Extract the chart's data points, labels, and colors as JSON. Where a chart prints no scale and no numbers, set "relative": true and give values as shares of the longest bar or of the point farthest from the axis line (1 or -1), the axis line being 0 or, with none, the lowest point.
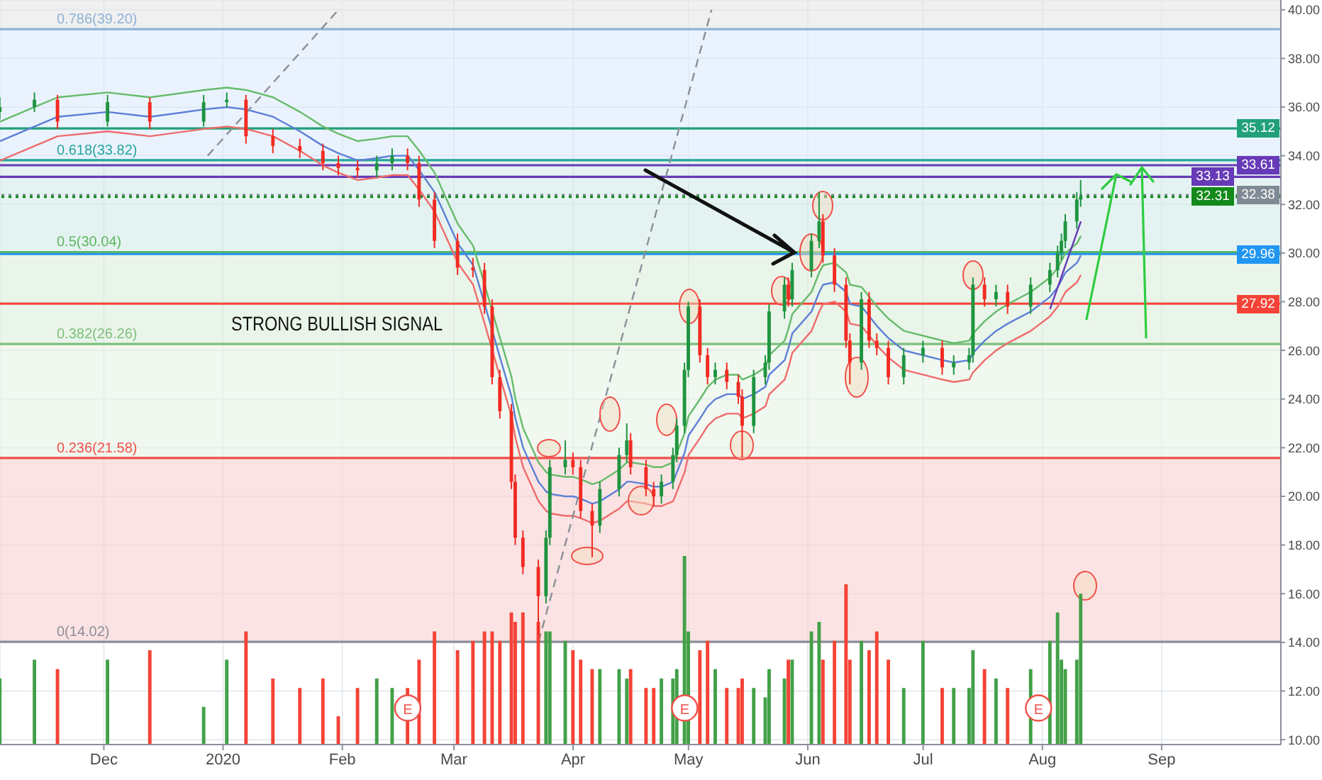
{
  "chart_data": [
    {
      "type": "candlestick",
      "x": [
        "2019-11-04",
        "2019-11-13",
        "2019-11-19",
        "2019-12-02",
        "2019-12-13",
        "2019-12-27",
        "2020-01-02",
        "2020-01-07",
        "2020-01-14",
        "2020-01-21",
        "2020-01-27",
        "2020-01-31",
        "2020-02-05",
        "2020-02-10",
        "2020-02-14",
        "2020-02-18",
        "2020-02-21",
        "2020-02-25",
        "2020-03-02",
        "2020-03-06",
        "2020-03-09",
        "2020-03-11",
        "2020-03-13",
        "2020-03-16",
        "2020-03-17",
        "2020-03-19",
        "2020-03-23",
        "2020-03-25",
        "2020-03-26",
        "2020-03-30",
        "2020-04-01",
        "2020-04-03",
        "2020-04-06",
        "2020-04-08",
        "2020-04-13",
        "2020-04-15",
        "2020-04-16",
        "2020-04-20",
        "2020-04-22",
        "2020-04-24",
        "2020-04-27",
        "2020-04-28",
        "2020-04-30",
        "2020-05-01",
        "2020-05-04",
        "2020-05-06",
        "2020-05-08",
        "2020-05-11",
        "2020-05-14",
        "2020-05-15",
        "2020-05-18",
        "2020-05-21",
        "2020-05-22",
        "2020-05-26",
        "2020-05-27",
        "2020-05-28",
        "2020-06-02",
        "2020-06-04",
        "2020-06-05",
        "2020-06-08",
        "2020-06-11",
        "2020-06-12",
        "2020-06-15",
        "2020-06-17",
        "2020-06-19",
        "2020-06-22",
        "2020-06-26",
        "2020-07-01",
        "2020-07-06",
        "2020-07-09",
        "2020-07-13",
        "2020-07-14",
        "2020-07-17",
        "2020-07-20",
        "2020-07-23",
        "2020-07-29",
        "2020-08-03",
        "2020-08-05",
        "2020-08-06",
        "2020-08-07",
        "2020-08-10",
        "2020-08-11"
      ],
      "series": [
        {
          "type": "line",
          "color": "#66bb6a",
          "values": [
            35.4,
            36.0,
            36.4,
            36.6,
            36.4,
            36.7,
            36.8,
            36.7,
            36.4,
            35.8,
            35.2,
            34.9,
            34.6,
            34.7,
            34.8,
            34.8,
            34.2,
            33.3,
            31.2,
            30.3,
            28.7,
            27.6,
            26.5,
            24.9,
            24.0,
            22.8,
            21.4,
            21.0,
            20.9,
            20.8,
            20.8,
            20.7,
            20.5,
            20.6,
            21.1,
            21.4,
            21.4,
            21.3,
            21.2,
            21.2,
            21.4,
            21.8,
            22.6,
            23.3,
            24.0,
            24.5,
            24.8,
            25.0,
            25.0,
            24.8,
            25.0,
            25.3,
            25.8,
            26.4,
            26.9,
            27.5,
            28.4,
            29.2,
            29.5,
            29.6,
            29.2,
            28.7,
            28.6,
            28.2,
            27.8,
            27.3,
            26.8,
            26.6,
            26.4,
            26.3,
            26.4,
            26.7,
            27.2,
            27.6,
            27.9,
            28.4,
            29.0,
            29.4,
            29.7,
            30.0,
            30.4,
            30.7
          ]
        },
        {
          "type": "line",
          "color": "#5c7fd6",
          "values": [
            34.6,
            35.2,
            35.6,
            35.8,
            35.6,
            35.9,
            36.0,
            35.9,
            35.6,
            35.0,
            34.4,
            34.1,
            33.8,
            33.9,
            34.0,
            34.0,
            33.4,
            32.5,
            30.4,
            29.5,
            27.9,
            26.8,
            25.7,
            24.1,
            23.2,
            22.0,
            20.6,
            20.2,
            20.1,
            20.0,
            20.0,
            19.9,
            19.7,
            19.8,
            20.3,
            20.6,
            20.6,
            20.5,
            20.4,
            20.4,
            20.6,
            21.0,
            21.8,
            22.5,
            23.2,
            23.7,
            24.0,
            24.2,
            24.2,
            24.0,
            24.2,
            24.5,
            25.0,
            25.6,
            26.1,
            26.7,
            27.6,
            28.4,
            28.7,
            28.8,
            28.4,
            27.9,
            27.8,
            27.4,
            27.0,
            26.5,
            26.0,
            25.8,
            25.6,
            25.5,
            25.6,
            25.9,
            26.4,
            26.8,
            27.1,
            27.6,
            28.2,
            28.6,
            28.9,
            29.2,
            29.6,
            29.9
          ]
        },
        {
          "type": "line",
          "color": "#ef6b6b",
          "values": [
            33.8,
            34.4,
            34.8,
            35.0,
            34.8,
            35.1,
            35.2,
            35.1,
            34.8,
            34.2,
            33.6,
            33.3,
            33.0,
            33.1,
            33.2,
            33.2,
            32.6,
            31.7,
            29.6,
            28.7,
            27.1,
            26.0,
            24.9,
            23.3,
            22.4,
            21.2,
            19.8,
            19.4,
            19.3,
            19.2,
            19.2,
            19.1,
            18.9,
            19.0,
            19.5,
            19.8,
            19.8,
            19.7,
            19.6,
            19.6,
            19.8,
            20.2,
            21.0,
            21.7,
            22.4,
            22.9,
            23.2,
            23.4,
            23.4,
            23.2,
            23.4,
            23.7,
            24.2,
            24.8,
            25.3,
            25.9,
            26.8,
            27.6,
            27.9,
            28.0,
            27.6,
            27.1,
            27.0,
            26.6,
            26.2,
            25.7,
            25.2,
            25.0,
            24.8,
            24.7,
            24.8,
            25.1,
            25.6,
            26.0,
            26.3,
            26.8,
            27.4,
            27.8,
            28.1,
            28.4,
            28.8,
            29.1
          ]
        },
        {
          "type": "line",
          "color": "#8a8f99",
          "line_style": "dashed",
          "x": [
            "2020-03-23",
            "2020-05-07"
          ],
          "values": [
            14.02,
            40
          ]
        },
        {
          "type": "line",
          "color": "#8a8f99",
          "line_style": "dashed",
          "x": [
            "2019-12-28",
            "2020-01-31"
          ],
          "values": [
            34.0,
            40
          ]
        },
        {
          "type": "line",
          "color": "#673ab7",
          "x": [
            "2020-08-03",
            "2020-08-11"
          ],
          "values": [
            27.7,
            31.3
          ]
        },
        {
          "type": "candlestick",
          "ohlc": [
            [
              35.8,
              36.4,
              35.5,
              36.0
            ],
            [
              36.0,
              36.6,
              35.8,
              36.3
            ],
            [
              36.3,
              36.5,
              35.1,
              35.4
            ],
            [
              35.4,
              36.5,
              35.2,
              36.2
            ],
            [
              36.2,
              36.4,
              35.1,
              35.4
            ],
            [
              35.4,
              36.5,
              35.2,
              36.2
            ],
            [
              36.2,
              36.6,
              36.0,
              36.3
            ],
            [
              36.3,
              36.5,
              34.5,
              34.8
            ],
            [
              34.8,
              35.1,
              34.1,
              34.4
            ],
            [
              34.4,
              34.7,
              33.9,
              34.2
            ],
            [
              34.2,
              34.5,
              33.4,
              33.7
            ],
            [
              33.7,
              34.0,
              33.2,
              33.5
            ],
            [
              33.5,
              33.8,
              33.1,
              33.4
            ],
            [
              33.4,
              34.0,
              33.1,
              33.7
            ],
            [
              33.7,
              34.3,
              33.4,
              34.0
            ],
            [
              34.0,
              34.3,
              33.4,
              33.7
            ],
            [
              33.7,
              34.0,
              31.9,
              32.2
            ],
            [
              32.2,
              32.5,
              30.2,
              30.5
            ],
            [
              30.5,
              30.8,
              29.1,
              29.4
            ],
            [
              29.4,
              29.8,
              29.0,
              29.3
            ],
            [
              29.3,
              29.6,
              27.5,
              27.8
            ],
            [
              27.8,
              28.1,
              24.6,
              24.9
            ],
            [
              24.9,
              25.2,
              23.2,
              23.5
            ],
            [
              23.5,
              23.8,
              20.3,
              20.6
            ],
            [
              20.6,
              20.9,
              18.0,
              18.3
            ],
            [
              18.3,
              18.6,
              16.8,
              17.1
            ],
            [
              17.1,
              17.4,
              14.3,
              15.9
            ],
            [
              15.9,
              18.6,
              15.6,
              18.3
            ],
            [
              18.3,
              21.5,
              18.0,
              21.2
            ],
            [
              21.2,
              22.3,
              20.9,
              21.5
            ],
            [
              21.5,
              21.8,
              20.9,
              21.2
            ],
            [
              21.2,
              21.5,
              19.1,
              19.4
            ],
            [
              19.4,
              19.7,
              17.5,
              18.8
            ],
            [
              18.8,
              20.6,
              18.5,
              20.3
            ],
            [
              20.3,
              22.0,
              20.0,
              21.7
            ],
            [
              21.7,
              23.0,
              21.4,
              22.3
            ],
            [
              22.3,
              22.6,
              20.9,
              21.2
            ],
            [
              21.2,
              21.5,
              20.0,
              20.3
            ],
            [
              20.3,
              20.6,
              19.6,
              20.0
            ],
            [
              20.0,
              20.9,
              19.7,
              20.6
            ],
            [
              20.6,
              22.0,
              20.3,
              21.7
            ],
            [
              21.7,
              23.2,
              21.4,
              22.9
            ],
            [
              22.9,
              25.5,
              22.6,
              25.2
            ],
            [
              25.2,
              28.0,
              24.9,
              27.8
            ],
            [
              27.8,
              28.1,
              25.5,
              25.8
            ],
            [
              25.8,
              26.1,
              24.6,
              24.9
            ],
            [
              24.9,
              25.5,
              24.6,
              25.2
            ],
            [
              25.2,
              25.5,
              24.4,
              24.7
            ],
            [
              24.7,
              25.0,
              23.8,
              24.1
            ],
            [
              24.1,
              24.4,
              21.6,
              22.9
            ],
            [
              22.9,
              25.2,
              22.6,
              24.9
            ],
            [
              24.9,
              25.8,
              24.6,
              25.5
            ],
            [
              25.5,
              27.9,
              25.2,
              27.6
            ],
            [
              27.6,
              29.0,
              27.3,
              28.7
            ],
            [
              28.7,
              29.0,
              27.8,
              28.1
            ],
            [
              28.1,
              29.6,
              27.8,
              29.3
            ],
            [
              29.3,
              30.8,
              29.0,
              30.5
            ],
            [
              30.5,
              32.5,
              30.2,
              31.3
            ],
            [
              31.3,
              31.6,
              29.6,
              29.9
            ],
            [
              29.9,
              30.2,
              28.4,
              28.7
            ],
            [
              28.7,
              29.0,
              26.1,
              26.4
            ],
            [
              26.4,
              26.7,
              24.6,
              25.5
            ],
            [
              25.5,
              28.4,
              25.2,
              28.1
            ],
            [
              28.1,
              28.4,
              26.1,
              26.4
            ],
            [
              26.4,
              26.7,
              25.8,
              26.1
            ],
            [
              26.1,
              26.4,
              24.6,
              24.9
            ],
            [
              24.9,
              26.1,
              24.6,
              25.8
            ],
            [
              25.8,
              26.4,
              25.5,
              26.1
            ],
            [
              26.1,
              26.4,
              25.0,
              25.3
            ],
            [
              25.3,
              25.8,
              25.0,
              25.5
            ],
            [
              25.5,
              26.1,
              25.2,
              25.8
            ],
            [
              25.8,
              29.0,
              25.5,
              28.7
            ],
            [
              28.7,
              29.0,
              27.8,
              28.1
            ],
            [
              28.1,
              28.7,
              27.8,
              28.4
            ],
            [
              28.4,
              28.7,
              27.5,
              27.8
            ],
            [
              27.8,
              29.0,
              27.5,
              28.7
            ],
            [
              28.7,
              29.6,
              28.4,
              29.3
            ],
            [
              29.3,
              30.3,
              29.0,
              30.0
            ],
            [
              30.0,
              30.8,
              29.7,
              30.5
            ],
            [
              30.5,
              31.6,
              30.2,
              31.3
            ],
            [
              31.3,
              32.5,
              31.0,
              32.2
            ],
            [
              32.2,
              33.0,
              31.9,
              32.3
            ]
          ],
          "colors": [
            "#1f9440",
            "#1f9440",
            "#f22b22",
            "#1f9440",
            "#f22b22",
            "#1f9440",
            "#1f9440",
            "#f22b22",
            "#f22b22",
            "#f22b22",
            "#f22b22",
            "#f22b22",
            "#f22b22",
            "#1f9440",
            "#1f9440",
            "#f22b22",
            "#f22b22",
            "#f22b22",
            "#f22b22",
            "#f22b22",
            "#f22b22",
            "#f22b22",
            "#f22b22",
            "#f22b22",
            "#f22b22",
            "#f22b22",
            "#f22b22",
            "#1f9440",
            "#1f9440",
            "#1f9440",
            "#f22b22",
            "#f22b22",
            "#f22b22",
            "#1f9440",
            "#1f9440",
            "#1f9440",
            "#f22b22",
            "#f22b22",
            "#f22b22",
            "#1f9440",
            "#1f9440",
            "#1f9440",
            "#1f9440",
            "#1f9440",
            "#f22b22",
            "#f22b22",
            "#1f9440",
            "#f22b22",
            "#f22b22",
            "#f22b22",
            "#1f9440",
            "#1f9440",
            "#1f9440",
            "#1f9440",
            "#f22b22",
            "#1f9440",
            "#1f9440",
            "#1f9440",
            "#f22b22",
            "#f22b22",
            "#f22b22",
            "#f22b22",
            "#1f9440",
            "#f22b22",
            "#f22b22",
            "#f22b22",
            "#1f9440",
            "#1f9440",
            "#f22b22",
            "#1f9440",
            "#1f9440",
            "#1f9440",
            "#f22b22",
            "#1f9440",
            "#f22b22",
            "#1f9440",
            "#1f9440",
            "#1f9440",
            "#1f9440",
            "#1f9440",
            "#1f9440",
            "#1f9440"
          ]
        }
      ],
      "marker": "none",
      "xlim": [
        "2019-11-04",
        "2020-10-02"
      ],
      "xticks": [
        {
          "value": "2019-12-01",
          "label": "Dec"
        },
        {
          "value": "2020-01-01",
          "label": "2020"
        },
        {
          "value": "2020-02-01",
          "label": "Feb"
        },
        {
          "value": "2020-03-01",
          "label": "Mar"
        },
        {
          "value": "2020-04-01",
          "label": "Apr"
        },
        {
          "value": "2020-05-01",
          "label": "May"
        },
        {
          "value": "2020-06-01",
          "label": "Jun"
        },
        {
          "value": "2020-07-01",
          "label": "Jul"
        },
        {
          "value": "2020-08-01",
          "label": "Aug"
        },
        {
          "value": "2020-09-01",
          "label": "Sep"
        }
      ],
      "ylim": [
        9.8,
        40.4
      ],
      "yticks": [
        {
          "value": 10,
          "label": "10.00"
        },
        {
          "value": 12,
          "label": "12.00"
        },
        {
          "value": 14,
          "label": "14.00"
        },
        {
          "value": 16,
          "label": "16.00"
        },
        {
          "value": 18,
          "label": "18.00"
        },
        {
          "value": 20,
          "label": "20.00"
        },
        {
          "value": 22,
          "label": "22.00"
        },
        {
          "value": 24,
          "label": "24.00"
        },
        {
          "value": 26,
          "label": "26.00"
        },
        {
          "value": 28,
          "label": "28.00"
        },
        {
          "value": 30,
          "label": "30.00"
        },
        {
          "value": 32,
          "label": "32.00"
        },
        {
          "value": 34,
          "label": "34.00"
        },
        {
          "value": 36,
          "label": "36.00"
        },
        {
          "value": 38,
          "label": "38.00"
        },
        {
          "value": 40,
          "label": "40.00"
        }
      ],
      "grid": true,
      "bands": [
        {
          "axis": "y",
          "from": 14.02,
          "to": 21.58,
          "color": "#f8cccc"
        },
        {
          "axis": "y",
          "from": 21.58,
          "to": 26.26,
          "color": "#e6f2e3"
        },
        {
          "axis": "y",
          "from": 26.26,
          "to": 30.04,
          "color": "#d8ecd8"
        },
        {
          "axis": "y",
          "from": 30.04,
          "to": 33.82,
          "color": "#cde9e6"
        },
        {
          "axis": "y",
          "from": 33.82,
          "to": 39.2,
          "color": "#d9eafb"
        },
        {
          "axis": "y",
          "from": 39.2,
          "to": 40.4,
          "color": "#e3e3e3"
        }
      ],
      "ref_lines": [
        {
          "axis": "y",
          "value": 39.2,
          "label": "0.786(39.20)",
          "color": "#8fb3d6"
        },
        {
          "axis": "y",
          "value": 33.82,
          "label": "0.618(33.82)",
          "color": "#26a69a"
        },
        {
          "axis": "y",
          "value": 30.04,
          "label": "0.5(30.04)",
          "color": "#5fb760"
        },
        {
          "axis": "y",
          "value": 26.26,
          "label": "0.382(26.26)",
          "color": "#7cbf7c"
        },
        {
          "axis": "y",
          "value": 21.58,
          "label": "0.236(21.58)",
          "color": "#f0504a"
        },
        {
          "axis": "y",
          "value": 14.02,
          "label": "0(14.02)",
          "color": "#8c8f99"
        },
        {
          "axis": "y",
          "value": 35.12,
          "label": "35.12",
          "color": "#22a079"
        },
        {
          "axis": "y",
          "value": 33.61,
          "label": "33.61",
          "color": "#673ab7"
        },
        {
          "axis": "y",
          "value": 33.13,
          "label": "33.13",
          "color": "#673ab7"
        },
        {
          "axis": "y",
          "value": 32.38,
          "label": "32.38",
          "color": "#7f8a94",
          "line_style": "dotted"
        },
        {
          "axis": "y",
          "value": 32.31,
          "label": "32.31",
          "color": "#138a1a",
          "line_style": "dotted"
        },
        {
          "axis": "y",
          "value": 29.96,
          "label": "29.96",
          "color": "#2196f3"
        },
        {
          "axis": "y",
          "value": 27.92,
          "label": "27.92",
          "color": "#f44336"
        }
      ],
      "annotations": [
        "STRONG BULLISH SIGNAL",
        {
          "text": "E",
          "x": "2020-02-18",
          "y": 11.3
        },
        {
          "text": "E",
          "x": "2020-04-30",
          "y": 11.3
        },
        {
          "text": "E",
          "x": "2020-07-31",
          "y": 11.3
        }
      ]
    },
    {
      "type": "bar",
      "relative": true,
      "tick_labels": false,
      "xlim": [
        "2019-11-04",
        "2020-10-02"
      ],
      "x": [
        "2019-11-04",
        "2019-11-13",
        "2019-11-19",
        "2019-12-02",
        "2019-12-13",
        "2019-12-27",
        "2020-01-02",
        "2020-01-07",
        "2020-01-14",
        "2020-01-21",
        "2020-01-27",
        "2020-01-31",
        "2020-02-05",
        "2020-02-10",
        "2020-02-14",
        "2020-02-18",
        "2020-02-21",
        "2020-02-25",
        "2020-03-02",
        "2020-03-06",
        "2020-03-09",
        "2020-03-11",
        "2020-03-13",
        "2020-03-16",
        "2020-03-17",
        "2020-03-19",
        "2020-03-23",
        "2020-03-25",
        "2020-03-26",
        "2020-03-30",
        "2020-04-01",
        "2020-04-03",
        "2020-04-06",
        "2020-04-08",
        "2020-04-13",
        "2020-04-15",
        "2020-04-16",
        "2020-04-20",
        "2020-04-22",
        "2020-04-24",
        "2020-04-27",
        "2020-04-28",
        "2020-04-30",
        "2020-05-01",
        "2020-05-04",
        "2020-05-06",
        "2020-05-08",
        "2020-05-11",
        "2020-05-14",
        "2020-05-15",
        "2020-05-18",
        "2020-05-21",
        "2020-05-22",
        "2020-05-26",
        "2020-05-27",
        "2020-05-28",
        "2020-06-02",
        "2020-06-04",
        "2020-06-05",
        "2020-06-08",
        "2020-06-11",
        "2020-06-12",
        "2020-06-15",
        "2020-06-17",
        "2020-06-19",
        "2020-06-22",
        "2020-06-26",
        "2020-07-01",
        "2020-07-06",
        "2020-07-09",
        "2020-07-13",
        "2020-07-14",
        "2020-07-17",
        "2020-07-20",
        "2020-07-23",
        "2020-07-29",
        "2020-08-03",
        "2020-08-05",
        "2020-08-06",
        "2020-08-07",
        "2020-08-10",
        "2020-08-11"
      ],
      "values": [
        0.35,
        0.45,
        0.4,
        0.45,
        0.5,
        0.2,
        0.45,
        0.6,
        0.35,
        0.3,
        0.35,
        0.15,
        0.3,
        0.35,
        0.3,
        0.3,
        0.45,
        0.6,
        0.5,
        0.55,
        0.6,
        0.6,
        0.55,
        0.7,
        0.65,
        0.7,
        0.65,
        0.6,
        0.6,
        0.55,
        0.5,
        0.45,
        0.4,
        0.4,
        0.4,
        0.35,
        0.4,
        0.3,
        0.3,
        0.35,
        0.35,
        0.4,
        1,
        0.6,
        0.5,
        0.55,
        0.4,
        0.3,
        0.3,
        0.35,
        0.3,
        0.25,
        0.4,
        0.35,
        0.45,
        0.45,
        0.6,
        0.65,
        0.45,
        0.55,
        0.85,
        0.45,
        0.55,
        0.5,
        0.6,
        0.45,
        0.3,
        0.55,
        0.3,
        0.3,
        0.3,
        0.5,
        0.4,
        0.35,
        0.3,
        0.4,
        0.55,
        0.7,
        0.45,
        0.4,
        0.45,
        0.8
      ],
      "colors": [
        "#43a047",
        "#43a047",
        "#f44336",
        "#43a047",
        "#f44336",
        "#43a047",
        "#43a047",
        "#f44336",
        "#f44336",
        "#f44336",
        "#f44336",
        "#f44336",
        "#f44336",
        "#43a047",
        "#43a047",
        "#f44336",
        "#f44336",
        "#f44336",
        "#f44336",
        "#f44336",
        "#f44336",
        "#f44336",
        "#f44336",
        "#f44336",
        "#f44336",
        "#f44336",
        "#f44336",
        "#43a047",
        "#43a047",
        "#43a047",
        "#f44336",
        "#f44336",
        "#f44336",
        "#43a047",
        "#43a047",
        "#43a047",
        "#f44336",
        "#f44336",
        "#f44336",
        "#43a047",
        "#43a047",
        "#43a047",
        "#43a047",
        "#43a047",
        "#f44336",
        "#f44336",
        "#43a047",
        "#f44336",
        "#f44336",
        "#f44336",
        "#43a047",
        "#43a047",
        "#43a047",
        "#43a047",
        "#f44336",
        "#43a047",
        "#43a047",
        "#43a047",
        "#f44336",
        "#f44336",
        "#f44336",
        "#f44336",
        "#43a047",
        "#f44336",
        "#f44336",
        "#f44336",
        "#43a047",
        "#43a047",
        "#f44336",
        "#43a047",
        "#43a047",
        "#43a047",
        "#f44336",
        "#43a047",
        "#f44336",
        "#43a047",
        "#43a047",
        "#43a047",
        "#43a047",
        "#43a047",
        "#43a047",
        "#43a047"
      ]
    }
  ]
}
